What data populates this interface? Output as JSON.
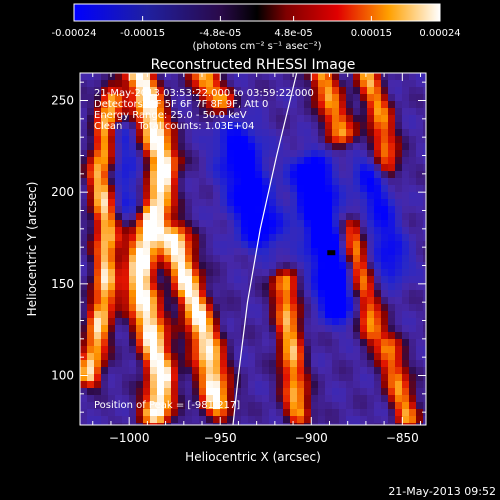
{
  "chart_data": {
    "type": "heatmap",
    "title": "Reconstructed RHESSI Image",
    "xlabel": "Heliocentric X (arcsec)",
    "ylabel": "Heliocentric Y (arcsec)",
    "xlim": [
      -1027,
      -837
    ],
    "ylim": [
      73,
      265
    ],
    "xticks": [
      -1000,
      -950,
      -900,
      -850
    ],
    "yticks": [
      100,
      150,
      200,
      250
    ],
    "colorbar": {
      "ticks": [
        -0.00024,
        -0.00015,
        -4.8e-05,
        4.8e-05,
        0.00015,
        0.00024
      ],
      "tick_labels": [
        "-0.00024",
        "-0.00015",
        "-4.8e-05",
        "4.8e-05",
        "0.00015",
        "0.00024"
      ],
      "min": -0.00024,
      "max": 0.00024,
      "units": "(photons cm⁻² s⁻¹ asec⁻²)"
    },
    "annotations": [
      "21-May-2013 03:53:22.000 to 03:59:22.000",
      "Detectors: 3F 5F 6F 7F 8F 9F, Att 0",
      "Energy Range: 25.0 - 50.0 keV",
      "Clean     Total counts: 1.03E+04"
    ],
    "peak_label": "Position of Peak = [-981,217]",
    "peak": {
      "x": -981,
      "y": 217
    },
    "min_marker": {
      "x": -889,
      "y": 167
    },
    "limb_curve": [
      [
        -943,
        73
      ],
      [
        -940,
        100
      ],
      [
        -935,
        140
      ],
      [
        -928,
        180
      ],
      [
        -919,
        220
      ],
      [
        -908,
        265
      ]
    ],
    "hot_ridges": [
      {
        "points": [
          [
            -1022,
            100
          ],
          [
            -1014,
            140
          ],
          [
            -1012,
            175
          ],
          [
            -1016,
            210
          ],
          [
            -1010,
            250
          ]
        ],
        "sigma": 5,
        "amp": 0.00026
      },
      {
        "points": [
          [
            -995,
            265
          ],
          [
            -990,
            250
          ],
          [
            -985,
            230
          ],
          [
            -981,
            217
          ],
          [
            -984,
            195
          ],
          [
            -992,
            170
          ],
          [
            -995,
            150
          ],
          [
            -988,
            125
          ],
          [
            -982,
            100
          ],
          [
            -985,
            80
          ]
        ],
        "sigma": 6,
        "amp": 0.00032
      },
      {
        "points": [
          [
            -975,
            175
          ],
          [
            -968,
            150
          ],
          [
            -960,
            125
          ],
          [
            -955,
            105
          ],
          [
            -952,
            85
          ]
        ],
        "sigma": 6,
        "amp": 0.0003
      },
      {
        "points": [
          [
            -960,
            265
          ],
          [
            -955,
            255
          ],
          [
            -950,
            250
          ]
        ],
        "sigma": 5,
        "amp": 0.00025
      },
      {
        "points": [
          [
            -915,
            150
          ],
          [
            -912,
            125
          ],
          [
            -910,
            100
          ],
          [
            -907,
            80
          ]
        ],
        "sigma": 5,
        "amp": 0.00024
      },
      {
        "points": [
          [
            -895,
            265
          ],
          [
            -890,
            250
          ],
          [
            -883,
            232
          ]
        ],
        "sigma": 5,
        "amp": 0.00024
      },
      {
        "points": [
          [
            -870,
            265
          ],
          [
            -862,
            240
          ],
          [
            -858,
            215
          ]
        ],
        "sigma": 5,
        "amp": 0.00022
      },
      {
        "points": [
          [
            -878,
            180
          ],
          [
            -873,
            150
          ],
          [
            -866,
            125
          ]
        ],
        "sigma": 5,
        "amp": 0.00024
      },
      {
        "points": [
          [
            -858,
            115
          ],
          [
            -852,
            95
          ],
          [
            -847,
            78
          ]
        ],
        "sigma": 5,
        "amp": 0.00022
      }
    ],
    "cold_lobes": [
      {
        "points": [
          [
            -940,
            225
          ],
          [
            -935,
            200
          ],
          [
            -928,
            180
          ]
        ],
        "sigma": 9,
        "amp": -0.00022
      },
      {
        "points": [
          [
            -900,
            210
          ],
          [
            -895,
            185
          ],
          [
            -890,
            165
          ],
          [
            -885,
            140
          ]
        ],
        "sigma": 8,
        "amp": -0.00026
      },
      {
        "points": [
          [
            -868,
            210
          ],
          [
            -862,
            185
          ],
          [
            -855,
            160
          ]
        ],
        "sigma": 7,
        "amp": -0.00016
      },
      {
        "points": [
          [
            -1005,
            230
          ],
          [
            -1000,
            195
          ]
        ],
        "sigma": 6,
        "amp": -0.00012
      }
    ]
  },
  "footer_timestamp": "21-May-2013 09:52"
}
